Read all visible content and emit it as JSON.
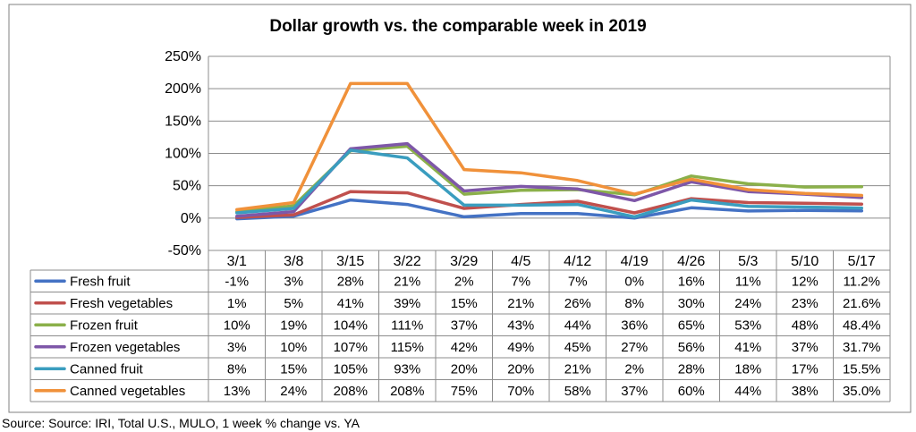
{
  "chart_data": {
    "type": "line",
    "title": "Dollar growth vs. the comparable week in 2019",
    "categories": [
      "3/1",
      "3/8",
      "3/15",
      "3/22",
      "3/29",
      "4/5",
      "4/12",
      "4/19",
      "4/26",
      "5/3",
      "5/10",
      "5/17"
    ],
    "ylim": [
      -50,
      250
    ],
    "yticks": [
      -50,
      0,
      50,
      100,
      150,
      200,
      250
    ],
    "ytick_labels": [
      "-50%",
      "0%",
      "50%",
      "100%",
      "150%",
      "200%",
      "250%"
    ],
    "grid": true,
    "legend": "data-table",
    "series": [
      {
        "name": "Fresh fruit",
        "color": "#4472C4",
        "values": [
          -1,
          3,
          28,
          21,
          2,
          7,
          7,
          0,
          16,
          11,
          12,
          11.2
        ],
        "labels": [
          "-1%",
          "3%",
          "28%",
          "21%",
          "2%",
          "7%",
          "7%",
          "0%",
          "16%",
          "11%",
          "12%",
          "11.2%"
        ]
      },
      {
        "name": "Fresh vegetables",
        "color": "#C0504D",
        "values": [
          1,
          5,
          41,
          39,
          15,
          21,
          26,
          8,
          30,
          24,
          23,
          21.6
        ],
        "labels": [
          "1%",
          "5%",
          "41%",
          "39%",
          "15%",
          "21%",
          "26%",
          "8%",
          "30%",
          "24%",
          "23%",
          "21.6%"
        ]
      },
      {
        "name": "Frozen fruit",
        "color": "#8BB04A",
        "values": [
          10,
          19,
          104,
          111,
          37,
          43,
          44,
          36,
          65,
          53,
          48,
          48.4
        ],
        "labels": [
          "10%",
          "19%",
          "104%",
          "111%",
          "37%",
          "43%",
          "44%",
          "36%",
          "65%",
          "53%",
          "48%",
          "48.4%"
        ]
      },
      {
        "name": "Frozen vegetables",
        "color": "#7E57A8",
        "values": [
          3,
          10,
          107,
          115,
          42,
          49,
          45,
          27,
          56,
          41,
          37,
          31.7
        ],
        "labels": [
          "3%",
          "10%",
          "107%",
          "115%",
          "42%",
          "49%",
          "45%",
          "27%",
          "56%",
          "41%",
          "37%",
          "31.7%"
        ]
      },
      {
        "name": "Canned fruit",
        "color": "#3A9DBF",
        "values": [
          8,
          15,
          105,
          93,
          20,
          20,
          21,
          2,
          28,
          18,
          17,
          15.5
        ],
        "labels": [
          "8%",
          "15%",
          "105%",
          "93%",
          "20%",
          "20%",
          "21%",
          "2%",
          "28%",
          "18%",
          "17%",
          "15.5%"
        ]
      },
      {
        "name": "Canned vegetables",
        "color": "#F0913A",
        "values": [
          13,
          24,
          208,
          208,
          75,
          70,
          58,
          37,
          60,
          44,
          38,
          35.0
        ],
        "labels": [
          "13%",
          "24%",
          "208%",
          "208%",
          "75%",
          "70%",
          "58%",
          "37%",
          "60%",
          "44%",
          "38%",
          "35.0%"
        ]
      }
    ]
  },
  "source": "Source: Source: IRI, Total U.S., MULO, 1 week % change vs. YA"
}
